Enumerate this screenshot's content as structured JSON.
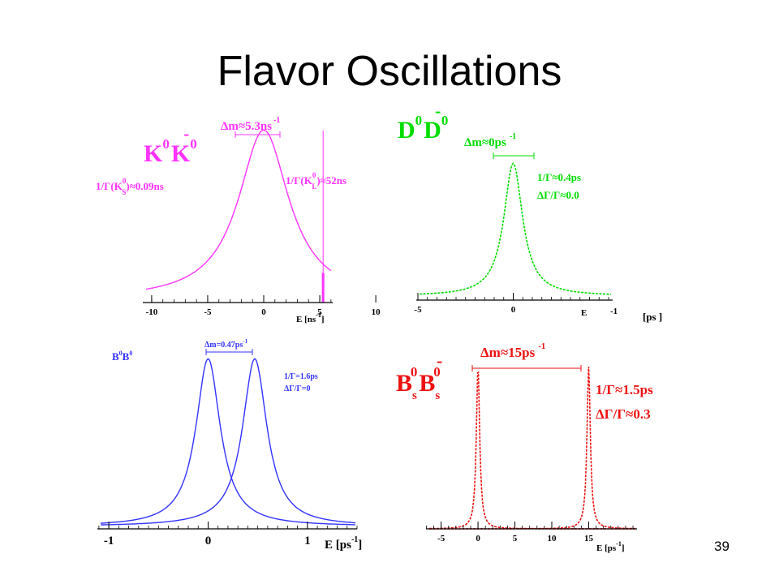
{
  "slide": {
    "title": "Flavor Oscillations",
    "page_number": "39"
  },
  "colors": {
    "kaon": "#ff33ff",
    "dmeson": "#00dd00",
    "bd": "#3333ff",
    "bs": "#ee1111"
  },
  "chart_data": [
    {
      "type": "line",
      "panel": "kaon",
      "title_parts": {
        "base1": "K",
        "sup1": "0",
        "bar": "-",
        "base2": "K",
        "sup2": "0"
      },
      "annotations": {
        "dm_label": "Δm≈5.3ns",
        "dm_exp": "-1",
        "gamma_s_prefix": "1/Γ(K",
        "gamma_s_sup": "0",
        "gamma_s_sub": "S",
        "gamma_s_suffix": ")≈0.09ns",
        "gamma_l_prefix": "1/Γ(K",
        "gamma_l_sup": "0",
        "gamma_l_sub": "L",
        "gamma_l_suffix": ")≈52ns"
      },
      "xlabel": "E [ns",
      "xlabel_exp": "-1",
      "xlabel_end": "]",
      "x_ticks": [
        -10,
        -5,
        0,
        5,
        10
      ],
      "x_tick_labels": [
        "-10",
        "-5",
        "0",
        "5",
        "10"
      ],
      "xlim": [
        -10.5,
        10.5
      ],
      "ylim": [
        0,
        1.05
      ],
      "series": [
        {
          "shape": "lorentzian",
          "center": 0,
          "width": 5.5,
          "height": 1.0
        },
        {
          "shape": "spike",
          "center": 5.3,
          "height": 0.16
        }
      ]
    },
    {
      "type": "line",
      "panel": "dmeson",
      "title_parts": {
        "base1": "D",
        "sup1": "0",
        "bar": "-",
        "base2": "D",
        "sup2": "0"
      },
      "annotations": {
        "dm_label": "Δm≈0ps",
        "dm_exp": "-1",
        "line1": "1/Γ≈0.4ps",
        "line2": "ΔΓ/Γ≈0.0"
      },
      "xlabel": "E",
      "x_tick_labels": [
        "-5",
        "0"
      ],
      "x_tick_values": [
        -5,
        0
      ],
      "x_end_label": "-1",
      "unit_label": "[ps  ]",
      "xlim": [
        -5,
        5
      ],
      "ylim": [
        0,
        1.1
      ],
      "series": [
        {
          "shape": "lorentzian",
          "center": 0,
          "width": 1.2,
          "height": 1.0
        }
      ]
    },
    {
      "type": "line",
      "panel": "bd",
      "title_parts": {
        "base1": "B",
        "sup1": "0",
        "bar": "-",
        "base2": "B",
        "sup2": "0"
      },
      "annotations": {
        "dm_label": "Δm=0.47ps",
        "dm_exp": "-1",
        "line1": "1/Γ=1.6ps",
        "line2": "ΔΓ/Γ=0"
      },
      "xlabel": "E [ps",
      "xlabel_exp": "-1",
      "xlabel_end": "]",
      "x_ticks": [
        -1,
        0,
        1
      ],
      "x_tick_labels": [
        "-1",
        "0",
        "1"
      ],
      "xlim": [
        -1.05,
        1.5
      ],
      "ylim": [
        0,
        1.05
      ],
      "series": [
        {
          "shape": "lorentzian",
          "center": 0,
          "width": 0.3,
          "height": 1.0
        },
        {
          "shape": "lorentzian",
          "center": 0.47,
          "width": 0.3,
          "height": 1.0
        }
      ]
    },
    {
      "type": "line",
      "panel": "bs",
      "title_parts": {
        "base1": "B",
        "sub1": "s",
        "sup1": "0",
        "bar": "-",
        "base2": "B",
        "sub2": "s",
        "sup2": "0"
      },
      "annotations": {
        "dm_label": "Δm≈15ps",
        "dm_exp": "-1",
        "line1": "1/Γ≈1.5ps",
        "line2": "ΔΓ/Γ≈0.3"
      },
      "xlabel": "E [ps",
      "xlabel_exp": "-1",
      "xlabel_end": "]",
      "x_ticks": [
        -5,
        0,
        5,
        10,
        15
      ],
      "x_tick_labels": [
        "-5",
        "0",
        "5",
        "10",
        "15"
      ],
      "xlim": [
        -6.5,
        21
      ],
      "ylim": [
        0,
        1.05
      ],
      "series": [
        {
          "shape": "lorentzian",
          "center": 0,
          "width": 0.55,
          "height": 1.0
        },
        {
          "shape": "lorentzian",
          "center": 15,
          "width": 0.55,
          "height": 1.0
        }
      ]
    }
  ]
}
